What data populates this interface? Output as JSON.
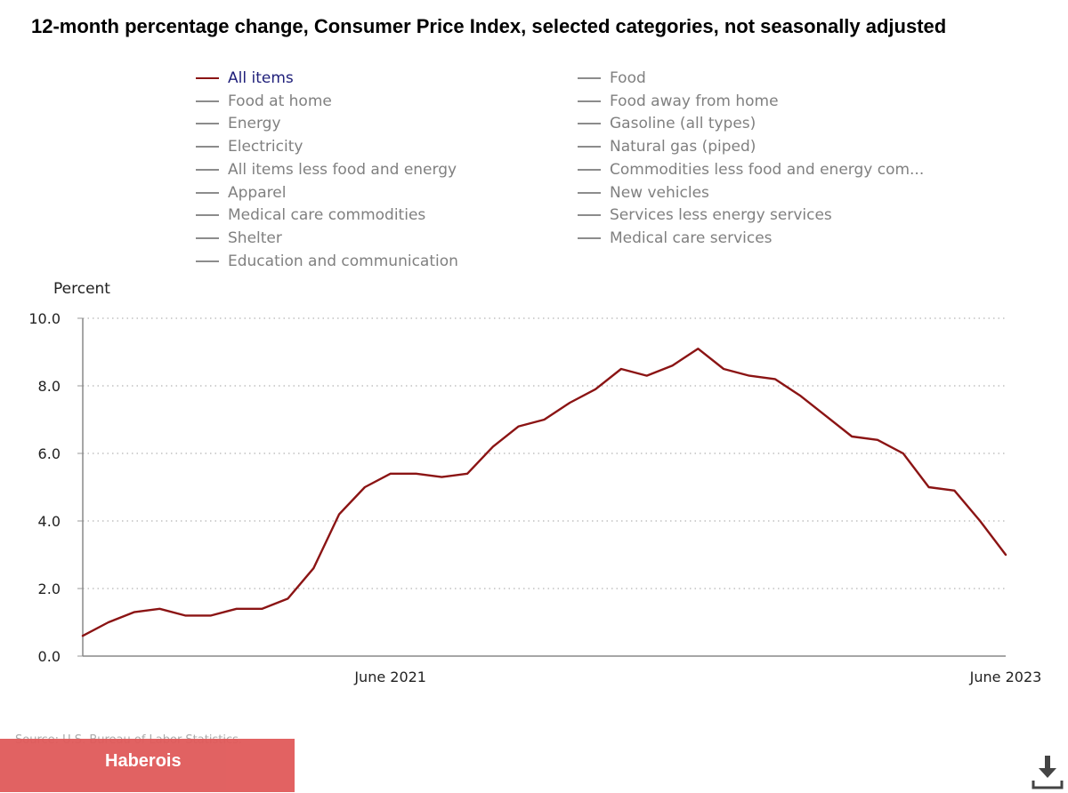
{
  "chart_data": {
    "type": "line",
    "title": "12-month percentage change, Consumer Price Index, selected categories, not seasonally adjusted",
    "ylabel": "Percent",
    "xlabel": "",
    "ylim": [
      0,
      10
    ],
    "yticks": [
      "0.0",
      "2.0",
      "4.0",
      "6.0",
      "8.0",
      "10.0"
    ],
    "xtick_labels": [
      {
        "label": "June 2021",
        "index": 12
      },
      {
        "label": "June 2023",
        "index": 36
      }
    ],
    "grid": "horizontal-dotted",
    "series": [
      {
        "name": "All items",
        "color": "#8b1414",
        "start": "June 2020",
        "end": "June 2023",
        "values": [
          0.6,
          1.0,
          1.3,
          1.4,
          1.2,
          1.2,
          1.4,
          1.4,
          1.7,
          2.6,
          4.2,
          5.0,
          5.4,
          5.4,
          5.3,
          5.4,
          6.2,
          6.8,
          7.0,
          7.5,
          7.9,
          8.5,
          8.3,
          8.6,
          9.1,
          8.5,
          8.3,
          8.2,
          7.7,
          7.1,
          6.5,
          6.4,
          6.0,
          5.0,
          4.9,
          4.0,
          3.0
        ]
      }
    ],
    "legend": [
      "All items",
      "Food",
      "Food at home",
      "Food away from home",
      "Energy",
      "Gasoline (all types)",
      "Electricity",
      "Natural gas (piped)",
      "All items less food and energy",
      "Commodities less food and energy com...",
      "Apparel",
      "New vehicles",
      "Medical care commodities",
      "Services less energy services",
      "Shelter",
      "Medical care services",
      "Education and communication"
    ],
    "legend_placement": "top"
  },
  "source": "Source: U.S. Bureau of Labor Statistics.",
  "brand": "Haberois",
  "icons": {
    "download": "download-icon"
  }
}
